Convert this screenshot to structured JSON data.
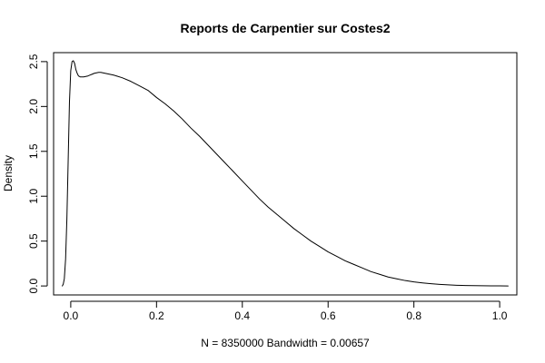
{
  "colors": {
    "background": "#ffffff",
    "foreground": "#000000",
    "line": "#000000"
  },
  "chart_data": {
    "type": "line",
    "title": "Reports de Carpentier sur Costes2",
    "xlabel": "N = 8350000   Bandwidth = 0.00657",
    "ylabel": "Density",
    "xlim": [
      -0.04,
      1.04
    ],
    "ylim": [
      -0.1,
      2.6
    ],
    "x_ticks": [
      0.0,
      0.2,
      0.4,
      0.6,
      0.8,
      1.0
    ],
    "x_tick_labels": [
      "0.0",
      "0.2",
      "0.4",
      "0.6",
      "0.8",
      "1.0"
    ],
    "y_ticks": [
      0.0,
      0.5,
      1.0,
      1.5,
      2.0,
      2.5
    ],
    "y_tick_labels": [
      "0.0",
      "0.5",
      "1.0",
      "1.5",
      "2.0",
      "2.5"
    ],
    "grid": false,
    "legend": "none",
    "series": [
      {
        "x": [
          -0.0197,
          -0.0175,
          -0.015,
          -0.012,
          -0.009,
          -0.006,
          -0.003,
          0.0,
          0.003,
          0.006,
          0.009,
          0.012,
          0.015,
          0.018,
          0.022,
          0.026,
          0.03,
          0.035,
          0.04,
          0.045,
          0.05,
          0.055,
          0.06,
          0.065,
          0.07,
          0.075,
          0.08,
          0.09,
          0.1,
          0.12,
          0.14,
          0.16,
          0.18,
          0.2,
          0.22,
          0.24,
          0.26,
          0.28,
          0.3,
          0.32,
          0.34,
          0.36,
          0.38,
          0.4,
          0.42,
          0.44,
          0.46,
          0.48,
          0.5,
          0.52,
          0.54,
          0.56,
          0.58,
          0.6,
          0.62,
          0.64,
          0.66,
          0.68,
          0.7,
          0.72,
          0.74,
          0.76,
          0.78,
          0.8,
          0.82,
          0.84,
          0.86,
          0.88,
          0.9,
          0.92,
          0.94,
          0.96,
          0.98,
          1.0,
          1.0197
        ],
        "y": [
          0.0,
          0.02,
          0.08,
          0.3,
          0.75,
          1.4,
          2.05,
          2.4,
          2.5,
          2.51,
          2.48,
          2.41,
          2.37,
          2.34,
          2.33,
          2.33,
          2.33,
          2.335,
          2.34,
          2.35,
          2.36,
          2.37,
          2.375,
          2.38,
          2.38,
          2.375,
          2.37,
          2.36,
          2.35,
          2.32,
          2.28,
          2.23,
          2.18,
          2.1,
          2.03,
          1.95,
          1.86,
          1.76,
          1.67,
          1.57,
          1.47,
          1.37,
          1.27,
          1.17,
          1.07,
          0.97,
          0.88,
          0.8,
          0.72,
          0.64,
          0.57,
          0.5,
          0.44,
          0.38,
          0.33,
          0.28,
          0.24,
          0.2,
          0.16,
          0.13,
          0.1,
          0.08,
          0.06,
          0.045,
          0.034,
          0.025,
          0.018,
          0.012,
          0.008,
          0.005,
          0.003,
          0.002,
          0.001,
          0.0005,
          0.0
        ]
      }
    ]
  }
}
